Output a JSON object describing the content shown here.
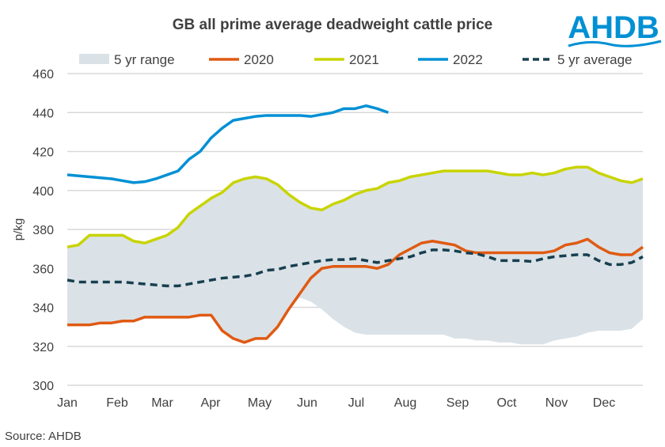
{
  "chart_data": {
    "type": "line",
    "title": "GB all prime average deadweight cattle price",
    "ylabel": "p/kg",
    "xlabel": "",
    "ylim": [
      300,
      460
    ],
    "yticks": [
      300,
      320,
      340,
      360,
      380,
      400,
      420,
      440,
      460
    ],
    "month_labels": [
      "Jan",
      "Feb",
      "Mar",
      "Apr",
      "May",
      "Jun",
      "Jul",
      "Aug",
      "Sep",
      "Oct",
      "Nov",
      "Dec"
    ],
    "x_unit": "week of year (0-52)",
    "grid": "horizontal",
    "legend": "top",
    "range": {
      "name": "5 yr range",
      "color": "#dae2e7",
      "upper": [
        371,
        372,
        377,
        377,
        377,
        377,
        374,
        373,
        375,
        377,
        381,
        388,
        392,
        396,
        399,
        404,
        406,
        407,
        406,
        403,
        398,
        394,
        391,
        390,
        393,
        395,
        398,
        400,
        401,
        404,
        405,
        407,
        408,
        409,
        410,
        410,
        410,
        410,
        410,
        409,
        408,
        408,
        409,
        408,
        409,
        411,
        412,
        412,
        409,
        407,
        405,
        404,
        406
      ],
      "lower": [
        331,
        331,
        331,
        332,
        332,
        333,
        333,
        335,
        335,
        335,
        335,
        335,
        336,
        336,
        328,
        324,
        322,
        324,
        324,
        330,
        339,
        345,
        343,
        339,
        334,
        330,
        327,
        326,
        326,
        326,
        326,
        326,
        326,
        326,
        326,
        324,
        324,
        323,
        323,
        322,
        322,
        321,
        321,
        321,
        323,
        324,
        325,
        327,
        328,
        328,
        328,
        329,
        334
      ]
    },
    "series": [
      {
        "name": "2020",
        "color": "#e05a12",
        "dashed": false,
        "values": [
          331,
          331,
          331,
          332,
          332,
          333,
          333,
          335,
          335,
          335,
          335,
          335,
          336,
          336,
          328,
          324,
          322,
          324,
          324,
          330,
          339,
          347,
          355,
          360,
          361,
          361,
          361,
          361,
          360,
          362,
          367,
          370,
          373,
          374,
          373,
          372,
          369,
          368,
          368,
          368,
          368,
          368,
          368,
          368,
          369,
          372,
          373,
          375,
          371,
          368,
          367,
          367,
          371
        ]
      },
      {
        "name": "2021",
        "color": "#c8d400",
        "dashed": false,
        "values": [
          371,
          372,
          377,
          377,
          377,
          377,
          374,
          373,
          375,
          377,
          381,
          388,
          392,
          396,
          399,
          404,
          406,
          407,
          406,
          403,
          398,
          394,
          391,
          390,
          393,
          395,
          398,
          400,
          401,
          404,
          405,
          407,
          408,
          409,
          410,
          410,
          410,
          410,
          410,
          409,
          408,
          408,
          409,
          408,
          409,
          411,
          412,
          412,
          409,
          407,
          405,
          404,
          406
        ]
      },
      {
        "name": "2022",
        "color": "#0090d4",
        "dashed": false,
        "values": [
          408,
          407.5,
          407,
          406.5,
          406,
          405,
          404,
          404.5,
          406,
          408,
          410,
          416,
          420,
          427,
          432,
          436,
          437,
          438,
          438.5,
          438.5,
          438.5,
          438.5,
          438,
          439,
          440,
          442,
          442,
          443.5,
          442,
          440
        ]
      },
      {
        "name": "5 yr average",
        "color": "#173f4f",
        "dashed": true,
        "values": [
          354,
          353,
          353,
          353,
          353,
          353,
          352.5,
          352,
          351.5,
          351,
          351,
          352,
          353,
          354,
          355,
          355.5,
          356,
          357,
          359,
          359.5,
          361,
          362,
          363,
          364,
          364.5,
          364.5,
          365,
          364,
          363,
          364,
          365,
          366,
          368,
          369.5,
          369.5,
          369,
          368,
          367.5,
          366,
          364,
          364,
          364,
          363.5,
          365,
          366,
          366.5,
          367,
          367,
          364,
          362,
          362,
          363,
          366
        ]
      }
    ]
  },
  "source": "Source: AHDB",
  "logo": {
    "text": "AHDB",
    "color": "#0090d4"
  }
}
